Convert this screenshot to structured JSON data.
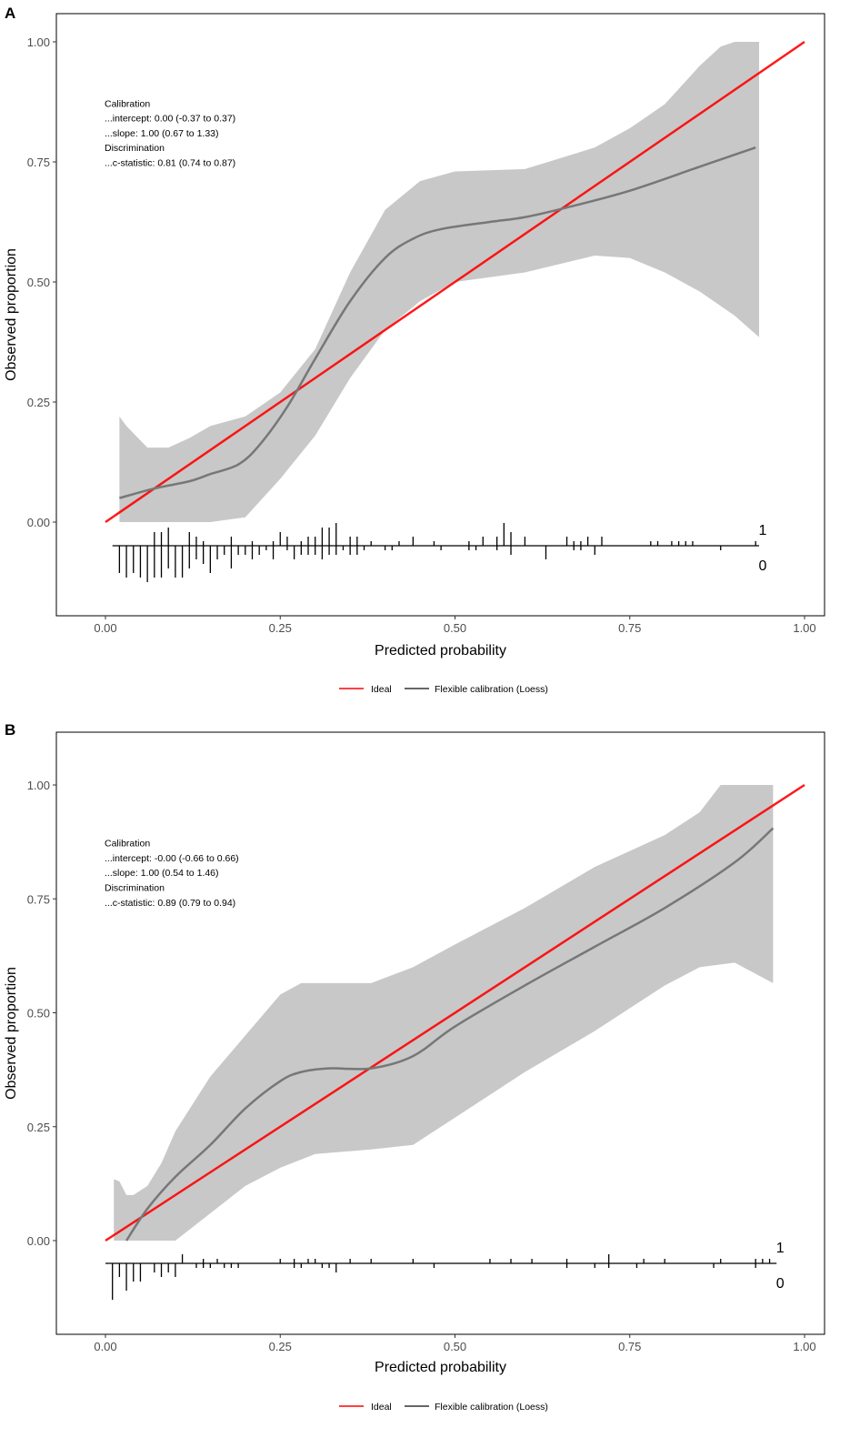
{
  "colors": {
    "ideal": "#ff0000",
    "loess": "#777777",
    "band": "#c8c8c8",
    "rug": "#000000"
  },
  "legend": {
    "ideal": "Ideal",
    "loess": "Flexible calibration (Loess)"
  },
  "chart_data": [
    {
      "type": "line",
      "panel_label": "A",
      "xlabel": "Predicted probability",
      "ylabel": "Observed proportion",
      "xlim": [
        0,
        1
      ],
      "ylim": [
        0,
        1
      ],
      "xticks": [
        "0.00",
        "0.25",
        "0.50",
        "0.75",
        "1.00"
      ],
      "yticks": [
        "0.00",
        "0.25",
        "0.50",
        "0.75",
        "1.00"
      ],
      "grid": false,
      "legend_position": "bottom",
      "annotation": [
        "Calibration",
        "...intercept: 0.00 (-0.37 to 0.37)",
        "...slope: 1.00 (0.67 to 1.33)",
        "Discrimination",
        "...c-statistic: 0.81 (0.74 to 0.87)"
      ],
      "rug_labels": {
        "events": "1",
        "nonevents": "0"
      },
      "ideal": [
        [
          0,
          0
        ],
        [
          1,
          1
        ]
      ],
      "loess": [
        [
          0.02,
          0.05
        ],
        [
          0.07,
          0.07
        ],
        [
          0.12,
          0.085
        ],
        [
          0.15,
          0.1
        ],
        [
          0.19,
          0.12
        ],
        [
          0.22,
          0.16
        ],
        [
          0.26,
          0.24
        ],
        [
          0.3,
          0.34
        ],
        [
          0.35,
          0.46
        ],
        [
          0.4,
          0.55
        ],
        [
          0.44,
          0.59
        ],
        [
          0.48,
          0.61
        ],
        [
          0.55,
          0.625
        ],
        [
          0.6,
          0.635
        ],
        [
          0.66,
          0.655
        ],
        [
          0.75,
          0.69
        ],
        [
          0.85,
          0.74
        ],
        [
          0.93,
          0.78
        ]
      ],
      "ci_upper": [
        [
          0.02,
          0.22
        ],
        [
          0.03,
          0.2
        ],
        [
          0.06,
          0.155
        ],
        [
          0.09,
          0.155
        ],
        [
          0.12,
          0.175
        ],
        [
          0.15,
          0.2
        ],
        [
          0.2,
          0.22
        ],
        [
          0.25,
          0.27
        ],
        [
          0.3,
          0.36
        ],
        [
          0.35,
          0.52
        ],
        [
          0.4,
          0.65
        ],
        [
          0.45,
          0.71
        ],
        [
          0.5,
          0.73
        ],
        [
          0.6,
          0.735
        ],
        [
          0.7,
          0.78
        ],
        [
          0.75,
          0.82
        ],
        [
          0.8,
          0.87
        ],
        [
          0.85,
          0.95
        ],
        [
          0.88,
          0.99
        ],
        [
          0.9,
          1.0
        ],
        [
          0.935,
          1.0
        ]
      ],
      "ci_lower": [
        [
          0.02,
          0.0
        ],
        [
          0.15,
          0.0
        ],
        [
          0.2,
          0.01
        ],
        [
          0.25,
          0.09
        ],
        [
          0.3,
          0.18
        ],
        [
          0.35,
          0.3
        ],
        [
          0.4,
          0.4
        ],
        [
          0.45,
          0.46
        ],
        [
          0.5,
          0.5
        ],
        [
          0.6,
          0.52
        ],
        [
          0.7,
          0.555
        ],
        [
          0.75,
          0.55
        ],
        [
          0.8,
          0.52
        ],
        [
          0.85,
          0.48
        ],
        [
          0.9,
          0.43
        ],
        [
          0.935,
          0.385
        ]
      ],
      "rug_range": [
        0.01,
        0.935
      ],
      "rug_events": [
        [
          0.07,
          3
        ],
        [
          0.08,
          3
        ],
        [
          0.09,
          4
        ],
        [
          0.12,
          3
        ],
        [
          0.13,
          2
        ],
        [
          0.14,
          1
        ],
        [
          0.18,
          2
        ],
        [
          0.21,
          1
        ],
        [
          0.24,
          1
        ],
        [
          0.25,
          3
        ],
        [
          0.26,
          2
        ],
        [
          0.28,
          1
        ],
        [
          0.29,
          2
        ],
        [
          0.3,
          2
        ],
        [
          0.31,
          4
        ],
        [
          0.32,
          4
        ],
        [
          0.33,
          5
        ],
        [
          0.35,
          2
        ],
        [
          0.36,
          2
        ],
        [
          0.38,
          1
        ],
        [
          0.42,
          1
        ],
        [
          0.44,
          2
        ],
        [
          0.47,
          1
        ],
        [
          0.52,
          1
        ],
        [
          0.54,
          2
        ],
        [
          0.56,
          2
        ],
        [
          0.57,
          5
        ],
        [
          0.58,
          3
        ],
        [
          0.6,
          2
        ],
        [
          0.66,
          2
        ],
        [
          0.67,
          1
        ],
        [
          0.68,
          1
        ],
        [
          0.69,
          2
        ],
        [
          0.71,
          2
        ],
        [
          0.78,
          1
        ],
        [
          0.79,
          1
        ],
        [
          0.81,
          1
        ],
        [
          0.82,
          1
        ],
        [
          0.83,
          1
        ],
        [
          0.84,
          1
        ],
        [
          0.93,
          1
        ]
      ],
      "rug_nonevents": [
        [
          0.02,
          6
        ],
        [
          0.03,
          7
        ],
        [
          0.04,
          6
        ],
        [
          0.05,
          7
        ],
        [
          0.06,
          8
        ],
        [
          0.07,
          7
        ],
        [
          0.08,
          7
        ],
        [
          0.09,
          5
        ],
        [
          0.1,
          7
        ],
        [
          0.11,
          7
        ],
        [
          0.12,
          5
        ],
        [
          0.13,
          3
        ],
        [
          0.14,
          4
        ],
        [
          0.15,
          6
        ],
        [
          0.16,
          3
        ],
        [
          0.17,
          2
        ],
        [
          0.18,
          5
        ],
        [
          0.19,
          2
        ],
        [
          0.2,
          2
        ],
        [
          0.21,
          3
        ],
        [
          0.22,
          2
        ],
        [
          0.23,
          1
        ],
        [
          0.24,
          3
        ],
        [
          0.26,
          1
        ],
        [
          0.27,
          3
        ],
        [
          0.28,
          2
        ],
        [
          0.29,
          2
        ],
        [
          0.3,
          2
        ],
        [
          0.31,
          3
        ],
        [
          0.32,
          2
        ],
        [
          0.33,
          2
        ],
        [
          0.34,
          1
        ],
        [
          0.35,
          2
        ],
        [
          0.36,
          2
        ],
        [
          0.37,
          1
        ],
        [
          0.4,
          1
        ],
        [
          0.41,
          1
        ],
        [
          0.48,
          1
        ],
        [
          0.52,
          1
        ],
        [
          0.53,
          1
        ],
        [
          0.56,
          1
        ],
        [
          0.58,
          2
        ],
        [
          0.63,
          3
        ],
        [
          0.67,
          1
        ],
        [
          0.68,
          1
        ],
        [
          0.7,
          2
        ],
        [
          0.88,
          1
        ]
      ]
    },
    {
      "type": "line",
      "panel_label": "B",
      "xlabel": "Predicted probability",
      "ylabel": "Observed proportion",
      "xlim": [
        0,
        1
      ],
      "ylim": [
        0,
        1
      ],
      "xticks": [
        "0.00",
        "0.25",
        "0.50",
        "0.75",
        "1.00"
      ],
      "yticks": [
        "0.00",
        "0.25",
        "0.50",
        "0.75",
        "1.00"
      ],
      "grid": false,
      "legend_position": "bottom",
      "annotation": [
        "Calibration",
        "...intercept: -0.00 (-0.66 to 0.66)",
        "...slope: 1.00 (0.54 to 1.46)",
        "Discrimination",
        "...c-statistic: 0.89 (0.79 to 0.94)"
      ],
      "rug_labels": {
        "events": "1",
        "nonevents": "0"
      },
      "ideal": [
        [
          0,
          0
        ],
        [
          1,
          1
        ]
      ],
      "loess": [
        [
          0.03,
          0.0
        ],
        [
          0.06,
          0.07
        ],
        [
          0.1,
          0.14
        ],
        [
          0.15,
          0.21
        ],
        [
          0.2,
          0.29
        ],
        [
          0.25,
          0.35
        ],
        [
          0.28,
          0.37
        ],
        [
          0.32,
          0.378
        ],
        [
          0.38,
          0.378
        ],
        [
          0.44,
          0.405
        ],
        [
          0.5,
          0.47
        ],
        [
          0.6,
          0.56
        ],
        [
          0.7,
          0.645
        ],
        [
          0.8,
          0.73
        ],
        [
          0.9,
          0.83
        ],
        [
          0.955,
          0.905
        ]
      ],
      "ci_upper": [
        [
          0.012,
          0.135
        ],
        [
          0.02,
          0.13
        ],
        [
          0.03,
          0.1
        ],
        [
          0.04,
          0.1
        ],
        [
          0.06,
          0.12
        ],
        [
          0.08,
          0.17
        ],
        [
          0.1,
          0.24
        ],
        [
          0.15,
          0.36
        ],
        [
          0.2,
          0.45
        ],
        [
          0.25,
          0.54
        ],
        [
          0.28,
          0.565
        ],
        [
          0.32,
          0.565
        ],
        [
          0.38,
          0.565
        ],
        [
          0.44,
          0.6
        ],
        [
          0.5,
          0.65
        ],
        [
          0.6,
          0.73
        ],
        [
          0.7,
          0.82
        ],
        [
          0.8,
          0.89
        ],
        [
          0.85,
          0.94
        ],
        [
          0.88,
          1.0
        ],
        [
          0.955,
          1.0
        ]
      ],
      "ci_lower": [
        [
          0.012,
          0.0
        ],
        [
          0.1,
          0.0
        ],
        [
          0.15,
          0.06
        ],
        [
          0.2,
          0.12
        ],
        [
          0.25,
          0.16
        ],
        [
          0.3,
          0.19
        ],
        [
          0.38,
          0.2
        ],
        [
          0.44,
          0.21
        ],
        [
          0.5,
          0.27
        ],
        [
          0.6,
          0.37
        ],
        [
          0.7,
          0.46
        ],
        [
          0.8,
          0.56
        ],
        [
          0.85,
          0.6
        ],
        [
          0.9,
          0.61
        ],
        [
          0.955,
          0.565
        ]
      ],
      "rug_range": [
        0.0,
        0.96
      ],
      "rug_events": [
        [
          0.11,
          2
        ],
        [
          0.14,
          1
        ],
        [
          0.16,
          1
        ],
        [
          0.25,
          1
        ],
        [
          0.27,
          1
        ],
        [
          0.29,
          1
        ],
        [
          0.3,
          1
        ],
        [
          0.35,
          1
        ],
        [
          0.38,
          1
        ],
        [
          0.44,
          1
        ],
        [
          0.55,
          1
        ],
        [
          0.58,
          1
        ],
        [
          0.61,
          1
        ],
        [
          0.66,
          1
        ],
        [
          0.72,
          2
        ],
        [
          0.77,
          1
        ],
        [
          0.8,
          1
        ],
        [
          0.88,
          1
        ],
        [
          0.93,
          1
        ],
        [
          0.94,
          1
        ],
        [
          0.95,
          1
        ]
      ],
      "rug_nonevents": [
        [
          0.01,
          8
        ],
        [
          0.02,
          3
        ],
        [
          0.03,
          6
        ],
        [
          0.04,
          4
        ],
        [
          0.05,
          4
        ],
        [
          0.07,
          2
        ],
        [
          0.08,
          3
        ],
        [
          0.09,
          2
        ],
        [
          0.1,
          3
        ],
        [
          0.13,
          1
        ],
        [
          0.14,
          1
        ],
        [
          0.15,
          1
        ],
        [
          0.17,
          1
        ],
        [
          0.18,
          1
        ],
        [
          0.19,
          1
        ],
        [
          0.27,
          1
        ],
        [
          0.28,
          1
        ],
        [
          0.31,
          1
        ],
        [
          0.32,
          1
        ],
        [
          0.33,
          2
        ],
        [
          0.47,
          1
        ],
        [
          0.66,
          1
        ],
        [
          0.7,
          1
        ],
        [
          0.72,
          1
        ],
        [
          0.76,
          1
        ],
        [
          0.87,
          1
        ],
        [
          0.93,
          1
        ]
      ]
    }
  ]
}
